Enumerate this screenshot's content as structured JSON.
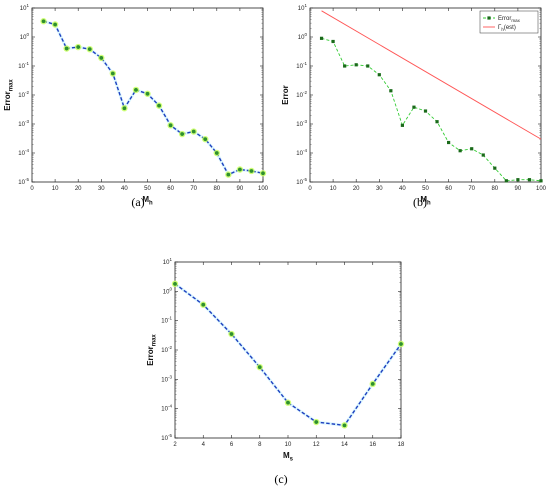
{
  "chart_data": [
    {
      "panel": "a",
      "type": "line",
      "caption": "(a)",
      "xlabel": "M",
      "xlabel_sub": "h",
      "ylabel": "Error",
      "ylabel_sub": "max",
      "xlim": [
        0,
        100
      ],
      "ylim_log10": [
        -5,
        1
      ],
      "y_scale": "log",
      "x_ticks": [
        "0",
        "10",
        "20",
        "30",
        "40",
        "50",
        "60",
        "70",
        "80",
        "90",
        "100"
      ],
      "y_ticks": [
        "10",
        "10",
        "10",
        "10",
        "10",
        "10",
        "10"
      ],
      "y_tick_exponents": [
        "-5",
        "-4",
        "-3",
        "-2",
        "-1",
        "0",
        "1"
      ],
      "series": [
        {
          "style": "dashed-blue-with-green-markers",
          "x": [
            5,
            10,
            15,
            20,
            25,
            30,
            35,
            40,
            45,
            50,
            55,
            60,
            65,
            70,
            75,
            80,
            85,
            90,
            95,
            100
          ],
          "y": [
            3.5,
            2.7,
            0.4,
            0.45,
            0.38,
            0.19,
            0.055,
            0.0035,
            0.015,
            0.011,
            0.0043,
            0.0009,
            0.00045,
            0.00055,
            0.0003,
            0.0001,
            1.8e-05,
            2.7e-05,
            2.4e-05,
            2e-05
          ]
        }
      ],
      "colors": {
        "line": "#1f3fbf",
        "marker": "#2f8f2f",
        "halo": "#c8ff60"
      }
    },
    {
      "panel": "b",
      "type": "line",
      "caption": "(b)",
      "xlabel": "M",
      "xlabel_sub": "h",
      "ylabel": "Error",
      "xlim": [
        0,
        100
      ],
      "ylim_log10": [
        -5,
        1
      ],
      "y_scale": "log",
      "x_ticks": [
        "0",
        "10",
        "20",
        "30",
        "40",
        "50",
        "60",
        "70",
        "80",
        "90",
        "100"
      ],
      "y_ticks": [
        "10",
        "10",
        "10",
        "10",
        "10",
        "10",
        "10"
      ],
      "y_tick_exponents": [
        "-5",
        "-4",
        "-3",
        "-2",
        "-1",
        "0",
        "1"
      ],
      "legend_position": "top-right",
      "series": [
        {
          "name": "Error",
          "name_sub": "max",
          "style": "dashed-green-with-markers",
          "x": [
            5,
            10,
            15,
            20,
            25,
            30,
            35,
            40,
            45,
            50,
            55,
            60,
            65,
            70,
            75,
            80,
            85,
            90,
            95,
            100
          ],
          "y": [
            0.9,
            0.7,
            0.1,
            0.11,
            0.1,
            0.05,
            0.014,
            0.0009,
            0.0038,
            0.0028,
            0.0012,
            0.00023,
            0.00012,
            0.00014,
            8.5e-05,
            3e-05,
            1.1e-05,
            1.2e-05,
            1.2e-05,
            1.1e-05
          ]
        },
        {
          "name": "Γ",
          "name_sub": "h",
          "name_suffix": "(est)",
          "style": "solid-red",
          "x": [
            5,
            100
          ],
          "y": [
            8,
            0.0003
          ]
        }
      ],
      "colors": {
        "line": "#33cc33",
        "marker": "#1a6a1a",
        "est": "#ff5555"
      }
    },
    {
      "panel": "c",
      "type": "line",
      "caption": "(c)",
      "xlabel": "M",
      "xlabel_sub": "s",
      "ylabel": "Error",
      "ylabel_sub": "max",
      "xlim": [
        2,
        18
      ],
      "ylim_log10": [
        -5,
        1
      ],
      "y_scale": "log",
      "x_ticks": [
        "2",
        "4",
        "6",
        "8",
        "10",
        "12",
        "14",
        "16",
        "18"
      ],
      "y_ticks": [
        "10",
        "10",
        "10",
        "10",
        "10",
        "10",
        "10"
      ],
      "y_tick_exponents": [
        "-5",
        "-4",
        "-3",
        "-2",
        "-1",
        "0",
        "1"
      ],
      "series": [
        {
          "style": "dashed-blue-with-green-markers",
          "x": [
            2,
            4,
            6,
            8,
            10,
            12,
            14,
            16,
            18
          ],
          "y": [
            1.8,
            0.35,
            0.035,
            0.0026,
            0.00016,
            3.5e-05,
            2.7e-05,
            0.0007,
            0.016
          ]
        }
      ],
      "colors": {
        "line": "#1f3fbf",
        "marker": "#2f8f2f",
        "halo": "#c8ff60"
      }
    }
  ]
}
